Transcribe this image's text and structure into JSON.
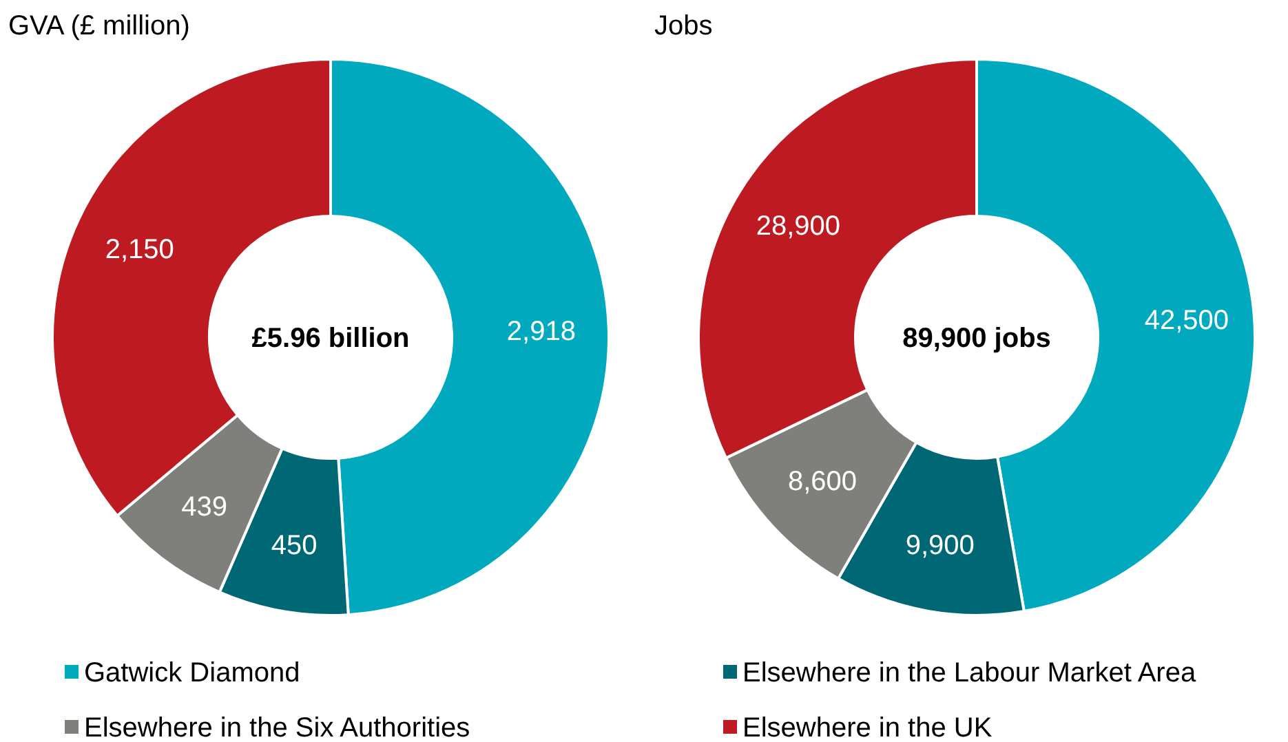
{
  "chart_data": [
    {
      "type": "donut",
      "title": "GVA (£ million)",
      "categories": [
        "Gatwick Diamond",
        "Elsewhere in the Labour Market Area",
        "Elsewhere in the Six Authorities",
        "Elsewhere in the UK"
      ],
      "values": [
        2918,
        450,
        439,
        2150
      ],
      "value_labels": [
        "2,918",
        "450",
        "439",
        "2,150"
      ],
      "colors": [
        "#00a9bd",
        "#006775",
        "#7f7f7b",
        "#be1a22"
      ],
      "annotations": [
        "£5.96 billion"
      ],
      "legend": "bottom"
    },
    {
      "type": "donut",
      "title": "Jobs",
      "categories": [
        null,
        null,
        null,
        null
      ],
      "values": [
        42500,
        9900,
        8600,
        28900
      ],
      "value_labels": [
        "42,500",
        "9,900",
        "8,600",
        "28,900"
      ],
      "colors": [
        "#00a9bd",
        "#006775",
        "#7f7f7b",
        "#be1a22"
      ],
      "annotations": [
        "89,900 jobs"
      ]
    }
  ]
}
